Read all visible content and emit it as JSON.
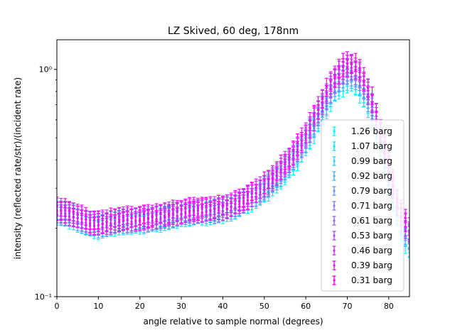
{
  "chart_data": {
    "type": "scatter",
    "title": "LZ Skived, 60 deg, 178nm",
    "xlabel": "angle relative to sample normal (degrees)",
    "ylabel": "intensity (reflected rate/str)/(incident rate)",
    "xlim": [
      0,
      85
    ],
    "ylim": [
      0.1,
      1.35
    ],
    "yscale": "log",
    "xticks": [
      0,
      10,
      20,
      30,
      40,
      50,
      60,
      70,
      80
    ],
    "xtick_labels": [
      "0",
      "10",
      "20",
      "30",
      "40",
      "50",
      "60",
      "70",
      "80"
    ],
    "yticks": [
      0.1,
      1.0
    ],
    "ytick_labels": [
      "10⁻¹",
      "10⁰"
    ],
    "legend_position": "lower-right",
    "grid": false,
    "x": [
      0,
      1,
      2,
      3,
      4,
      5,
      6,
      7,
      8,
      9,
      10,
      11,
      12,
      13,
      14,
      15,
      16,
      17,
      18,
      19,
      20,
      21,
      22,
      23,
      24,
      25,
      26,
      27,
      28,
      29,
      30,
      31,
      32,
      33,
      34,
      35,
      36,
      37,
      38,
      39,
      40,
      41,
      42,
      43,
      44,
      45,
      46,
      47,
      48,
      49,
      50,
      51,
      52,
      53,
      54,
      55,
      56,
      57,
      58,
      59,
      60,
      61,
      62,
      63,
      64,
      65,
      66,
      67,
      68,
      69,
      70,
      71,
      72,
      73,
      74,
      75,
      76,
      77,
      78,
      79,
      80,
      81,
      82,
      83,
      84,
      85
    ],
    "base_curve": [
      0.24,
      0.238,
      0.235,
      0.232,
      0.228,
      0.224,
      0.22,
      0.216,
      0.212,
      0.21,
      0.209,
      0.21,
      0.212,
      0.214,
      0.216,
      0.217,
      0.218,
      0.218,
      0.219,
      0.219,
      0.22,
      0.221,
      0.222,
      0.223,
      0.224,
      0.225,
      0.227,
      0.229,
      0.231,
      0.233,
      0.235,
      0.237,
      0.238,
      0.239,
      0.24,
      0.24,
      0.241,
      0.241,
      0.242,
      0.243,
      0.245,
      0.248,
      0.251,
      0.255,
      0.26,
      0.266,
      0.272,
      0.279,
      0.287,
      0.296,
      0.306,
      0.317,
      0.33,
      0.344,
      0.36,
      0.378,
      0.398,
      0.42,
      0.446,
      0.476,
      0.51,
      0.55,
      0.6,
      0.655,
      0.71,
      0.77,
      0.84,
      0.9,
      0.95,
      0.99,
      1.02,
      1.02,
      0.99,
      0.94,
      0.87,
      0.79,
      0.7,
      0.61,
      0.52,
      0.44,
      0.37,
      0.31,
      0.26,
      0.225,
      0.205,
      0.19
    ],
    "relative_error": 0.09,
    "series": [
      {
        "name": "1.26 barg",
        "color": "#00ffff",
        "scale": [
          0.97,
          0.86
        ]
      },
      {
        "name": "1.07 barg",
        "color": "#19e6ff",
        "scale": [
          0.975,
          0.88
        ]
      },
      {
        "name": "0.99 barg",
        "color": "#33ccff",
        "scale": [
          0.98,
          0.9
        ]
      },
      {
        "name": "0.92 barg",
        "color": "#4cb3ff",
        "scale": [
          0.985,
          0.92
        ]
      },
      {
        "name": "0.79 barg",
        "color": "#6699ff",
        "scale": [
          0.99,
          0.94
        ]
      },
      {
        "name": "0.71 barg",
        "color": "#8080ff",
        "scale": [
          0.995,
          0.96
        ]
      },
      {
        "name": "0.61 barg",
        "color": "#9966ff",
        "scale": [
          1.0,
          0.98
        ]
      },
      {
        "name": "0.53 barg",
        "color": "#b34cff",
        "scale": [
          1.005,
          1.0
        ]
      },
      {
        "name": "0.46 barg",
        "color": "#cc33ff",
        "scale": [
          1.01,
          1.02
        ]
      },
      {
        "name": "0.39 barg",
        "color": "#e619ff",
        "scale": [
          1.015,
          1.04
        ]
      },
      {
        "name": "0.31 barg",
        "color": "#ff00ff",
        "scale": [
          1.02,
          1.06
        ]
      }
    ]
  }
}
